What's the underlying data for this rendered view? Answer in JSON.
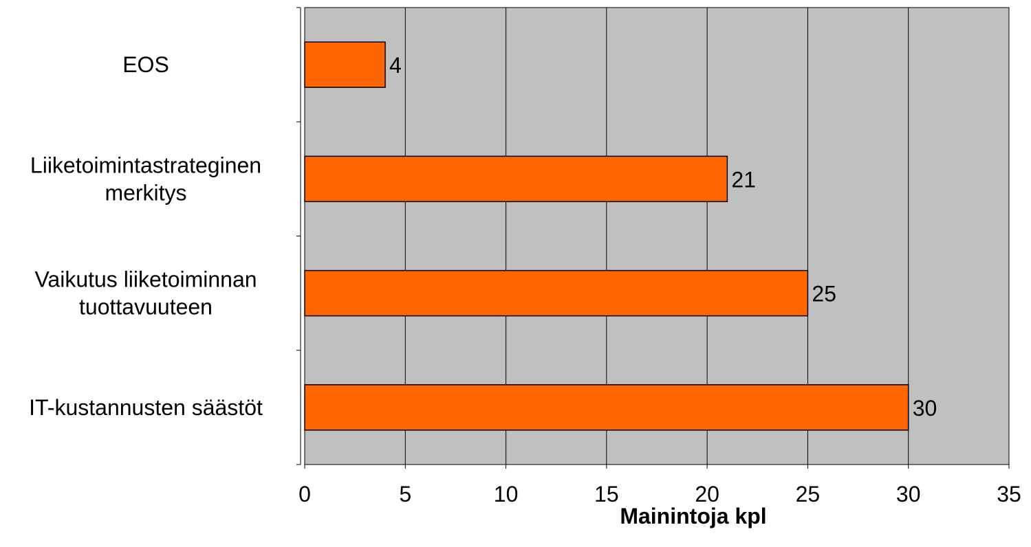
{
  "chart_data": {
    "type": "bar",
    "orientation": "horizontal",
    "categories": [
      [
        "EOS"
      ],
      [
        "Liiketoimintastrateginen",
        "merkitys"
      ],
      [
        "Vaikutus liiketoiminnan",
        "tuottavuuteen"
      ],
      [
        "IT-kustannusten säästöt"
      ]
    ],
    "values": [
      4,
      21,
      25,
      30
    ],
    "data_labels": [
      "4",
      "21",
      "25",
      "30"
    ],
    "title": "",
    "xlabel": "Mainintoja kpl",
    "ylabel": "",
    "xlim": [
      0,
      35
    ],
    "xticks": [
      0,
      5,
      10,
      15,
      20,
      25,
      30,
      35
    ],
    "tick_labels": [
      "0",
      "5",
      "10",
      "15",
      "20",
      "25",
      "30",
      "35"
    ],
    "grid": "vertical",
    "legend": "none",
    "colors": {
      "bar": "#FF6600",
      "plot_background": "#C0C0C0",
      "grid": "#000000"
    }
  }
}
